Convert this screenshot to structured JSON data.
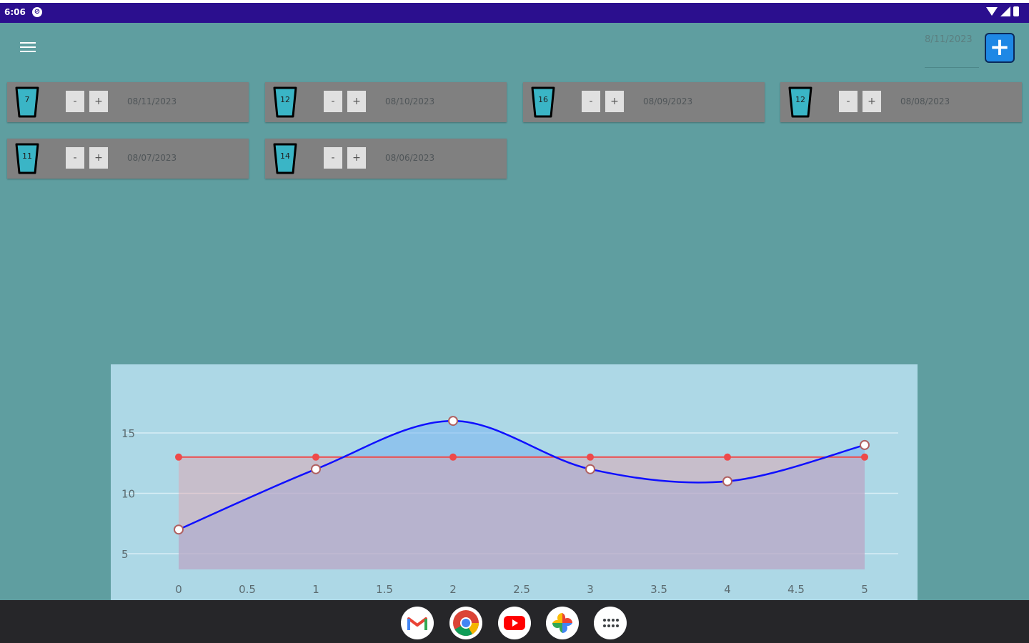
{
  "status_bar": {
    "time": "6:06"
  },
  "header": {
    "date_value": "8/11/2023",
    "add_label": "+"
  },
  "entries": [
    {
      "count": "7",
      "date": "08/11/2023",
      "minus": "-",
      "plus": "+"
    },
    {
      "count": "12",
      "date": "08/10/2023",
      "minus": "-",
      "plus": "+"
    },
    {
      "count": "16",
      "date": "08/09/2023",
      "minus": "-",
      "plus": "+"
    },
    {
      "count": "12",
      "date": "08/08/2023",
      "minus": "-",
      "plus": "+"
    },
    {
      "count": "11",
      "date": "08/07/2023",
      "minus": "-",
      "plus": "+"
    },
    {
      "count": "14",
      "date": "08/06/2023",
      "minus": "-",
      "plus": "+"
    }
  ],
  "colors": {
    "background": "#5f9ea0",
    "chart_background": "#add8e6",
    "series_actual": "#1010ff",
    "series_goal": "#ee4a4a",
    "cup_fill": "#3ab5c6"
  },
  "chart_data": {
    "type": "line",
    "x": [
      0,
      1,
      2,
      3,
      4,
      5
    ],
    "series": [
      {
        "values": [
          7,
          12,
          16,
          12,
          11,
          14
        ]
      },
      {
        "values": [
          13,
          13,
          13,
          13,
          13,
          13
        ]
      }
    ],
    "x_ticks": [
      "0",
      "0.5",
      "1",
      "1.5",
      "2",
      "2.5",
      "3",
      "3.5",
      "4",
      "4.5",
      "5"
    ],
    "y_ticks": [
      "5",
      "10",
      "15"
    ],
    "xlim": [
      0,
      5
    ],
    "ylim": [
      4,
      18
    ],
    "grid": true
  },
  "dock": [
    {
      "icon": "gmail-icon"
    },
    {
      "icon": "chrome-icon"
    },
    {
      "icon": "youtube-icon"
    },
    {
      "icon": "photos-icon"
    },
    {
      "icon": "app-drawer-icon"
    }
  ]
}
